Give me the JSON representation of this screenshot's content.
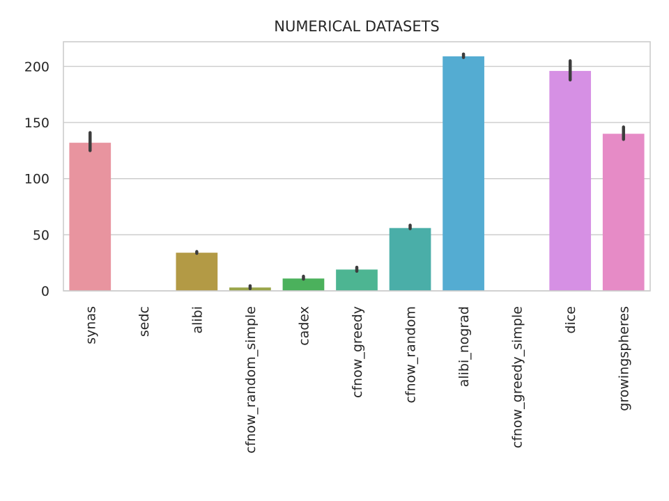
{
  "chart_data": {
    "type": "bar",
    "title": "NUMERICAL DATASETS",
    "xlabel": "",
    "ylabel": "",
    "ylim": [
      0,
      222
    ],
    "yticks": [
      0,
      50,
      100,
      150,
      200
    ],
    "grid": true,
    "legend": "none",
    "categories": [
      "synas",
      "sedc",
      "alibi",
      "cfnow_random_simple",
      "cadex",
      "cfnow_greedy",
      "cfnow_random",
      "alibi_nograd",
      "cfnow_greedy_simple",
      "dice",
      "growingspheres"
    ],
    "values": [
      132,
      0.3,
      34,
      3,
      11,
      19,
      56,
      209,
      0.3,
      196,
      140
    ],
    "error_low": [
      125,
      0,
      33.5,
      2,
      10.5,
      17.5,
      55.5,
      208,
      0,
      188,
      135
    ],
    "error_high": [
      141,
      0.5,
      35,
      4.5,
      13,
      21,
      58.5,
      211,
      0.5,
      205,
      146
    ],
    "colors": [
      "#e8949f",
      "#d9a07a",
      "#b39a45",
      "#9aa54a",
      "#4bb15c",
      "#4db592",
      "#4aaea8",
      "#54acd2",
      "#96a6e2",
      "#d690e4",
      "#e68bc6"
    ]
  }
}
